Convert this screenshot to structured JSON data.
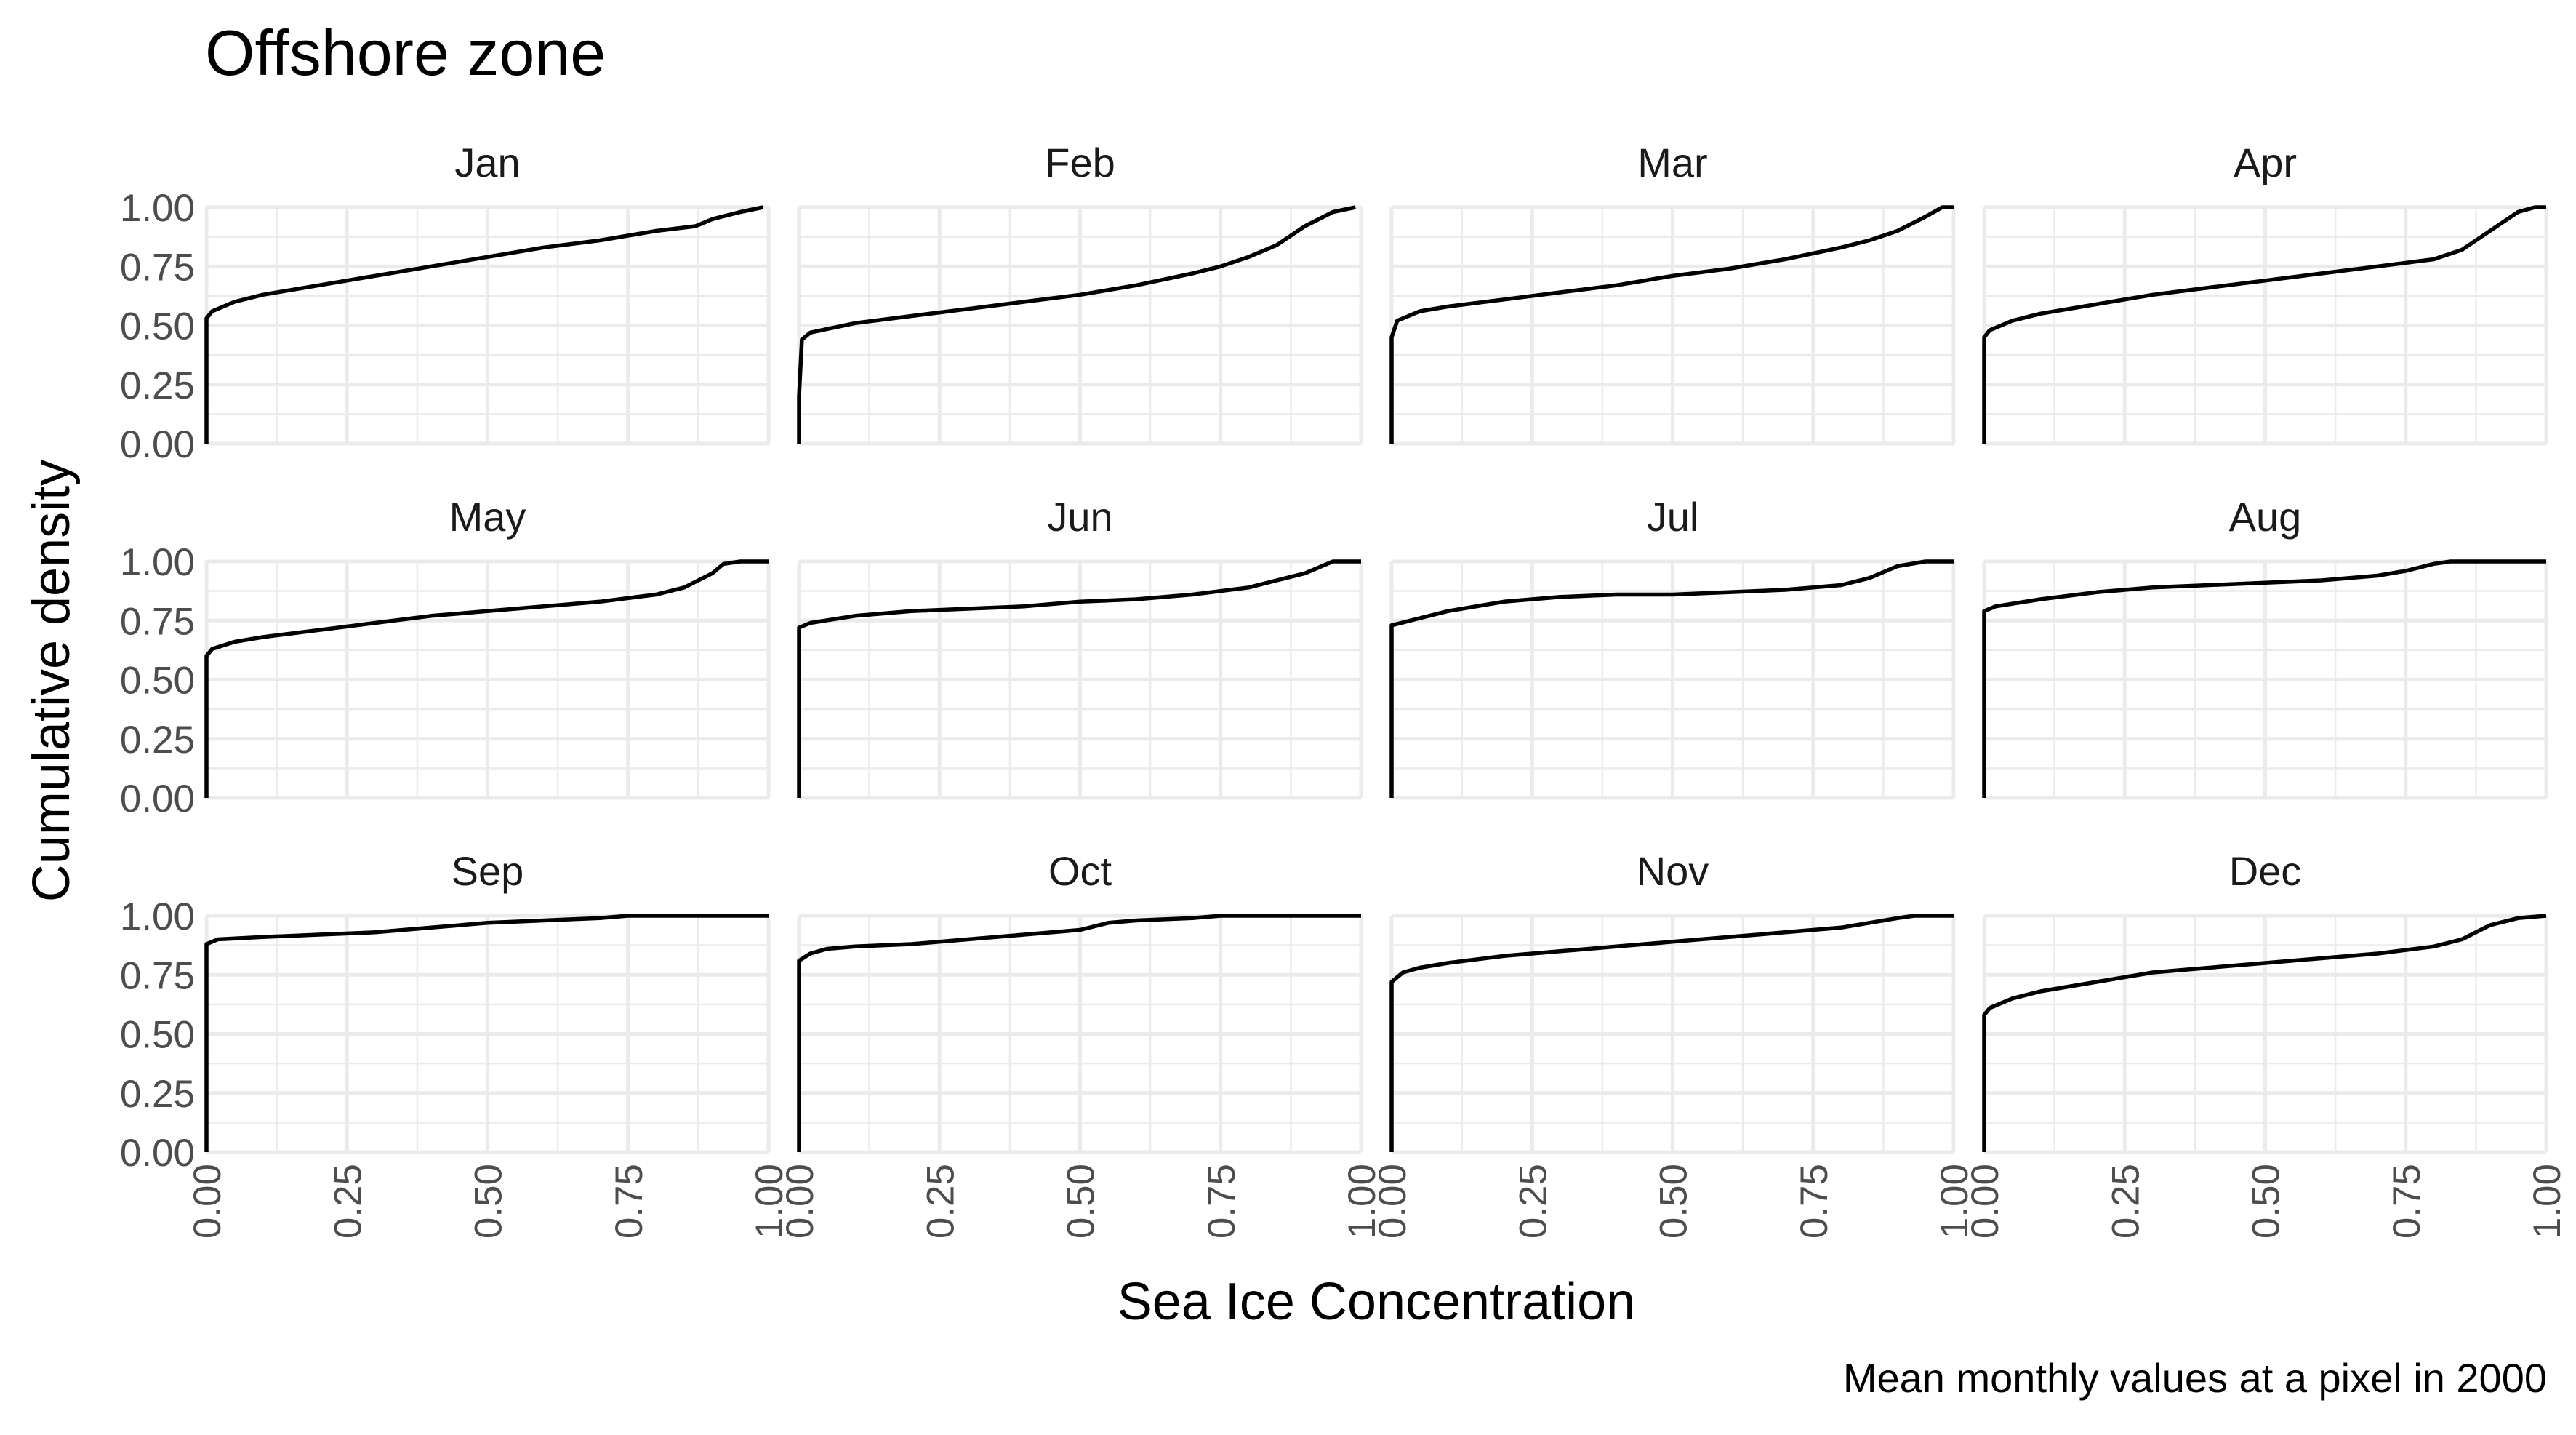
{
  "chart_data": {
    "type": "line",
    "title": "Offshore zone",
    "xlabel": "Sea Ice Concentration",
    "ylabel": "Cumulative density",
    "caption": "Mean monthly values at a pixel in 2000",
    "xlim": [
      0,
      1
    ],
    "ylim": [
      0,
      1
    ],
    "x_ticks": [
      "0.00",
      "0.25",
      "0.50",
      "0.75",
      "1.00"
    ],
    "y_ticks": [
      "0.00",
      "0.25",
      "0.50",
      "0.75",
      "1.00"
    ],
    "grid": true,
    "facets": [
      {
        "name": "Jan",
        "series": [
          {
            "x": [
              0,
              0,
              0.01,
              0.05,
              0.1,
              0.2,
              0.3,
              0.4,
              0.5,
              0.6,
              0.7,
              0.8,
              0.87,
              0.9,
              0.95,
              0.99
            ],
            "y": [
              0,
              0.53,
              0.56,
              0.6,
              0.63,
              0.67,
              0.71,
              0.75,
              0.79,
              0.83,
              0.86,
              0.9,
              0.92,
              0.95,
              0.98,
              1.0
            ]
          }
        ]
      },
      {
        "name": "Feb",
        "series": [
          {
            "x": [
              0,
              0,
              0.005,
              0.02,
              0.1,
              0.2,
              0.3,
              0.4,
              0.5,
              0.6,
              0.7,
              0.75,
              0.8,
              0.85,
              0.9,
              0.95,
              0.99
            ],
            "y": [
              0,
              0.2,
              0.44,
              0.47,
              0.51,
              0.54,
              0.57,
              0.6,
              0.63,
              0.67,
              0.72,
              0.75,
              0.79,
              0.84,
              0.92,
              0.98,
              1.0
            ]
          }
        ]
      },
      {
        "name": "Mar",
        "series": [
          {
            "x": [
              0,
              0,
              0.01,
              0.05,
              0.1,
              0.2,
              0.3,
              0.4,
              0.5,
              0.6,
              0.7,
              0.8,
              0.85,
              0.9,
              0.95,
              0.98,
              1.0
            ],
            "y": [
              0,
              0.45,
              0.52,
              0.56,
              0.58,
              0.61,
              0.64,
              0.67,
              0.71,
              0.74,
              0.78,
              0.83,
              0.86,
              0.9,
              0.96,
              1.0,
              1.0
            ]
          }
        ]
      },
      {
        "name": "Apr",
        "series": [
          {
            "x": [
              0,
              0,
              0.01,
              0.05,
              0.1,
              0.2,
              0.3,
              0.4,
              0.5,
              0.6,
              0.7,
              0.8,
              0.85,
              0.9,
              0.95,
              0.98,
              1.0
            ],
            "y": [
              0,
              0.45,
              0.48,
              0.52,
              0.55,
              0.59,
              0.63,
              0.66,
              0.69,
              0.72,
              0.75,
              0.78,
              0.82,
              0.9,
              0.98,
              1.0,
              1.0
            ]
          }
        ]
      },
      {
        "name": "May",
        "series": [
          {
            "x": [
              0,
              0,
              0.01,
              0.05,
              0.1,
              0.2,
              0.3,
              0.4,
              0.5,
              0.6,
              0.7,
              0.8,
              0.85,
              0.9,
              0.92,
              0.95,
              1.0
            ],
            "y": [
              0,
              0.6,
              0.63,
              0.66,
              0.68,
              0.71,
              0.74,
              0.77,
              0.79,
              0.81,
              0.83,
              0.86,
              0.89,
              0.95,
              0.99,
              1.0,
              1.0
            ]
          }
        ]
      },
      {
        "name": "Jun",
        "series": [
          {
            "x": [
              0,
              0,
              0.02,
              0.1,
              0.2,
              0.3,
              0.4,
              0.5,
              0.6,
              0.7,
              0.8,
              0.85,
              0.9,
              0.95,
              1.0
            ],
            "y": [
              0,
              0.72,
              0.74,
              0.77,
              0.79,
              0.8,
              0.81,
              0.83,
              0.84,
              0.86,
              0.89,
              0.92,
              0.95,
              1.0,
              1.0
            ]
          }
        ]
      },
      {
        "name": "Jul",
        "series": [
          {
            "x": [
              0,
              0,
              0.05,
              0.1,
              0.2,
              0.3,
              0.4,
              0.5,
              0.6,
              0.7,
              0.8,
              0.85,
              0.9,
              0.95,
              1.0
            ],
            "y": [
              0,
              0.73,
              0.76,
              0.79,
              0.83,
              0.85,
              0.86,
              0.86,
              0.87,
              0.88,
              0.9,
              0.93,
              0.98,
              1.0,
              1.0
            ]
          }
        ]
      },
      {
        "name": "Aug",
        "series": [
          {
            "x": [
              0,
              0,
              0.02,
              0.1,
              0.2,
              0.3,
              0.4,
              0.5,
              0.6,
              0.7,
              0.75,
              0.8,
              0.83,
              1.0
            ],
            "y": [
              0,
              0.79,
              0.81,
              0.84,
              0.87,
              0.89,
              0.9,
              0.91,
              0.92,
              0.94,
              0.96,
              0.99,
              1.0,
              1.0
            ]
          }
        ]
      },
      {
        "name": "Sep",
        "series": [
          {
            "x": [
              0,
              0,
              0.02,
              0.1,
              0.2,
              0.3,
              0.4,
              0.5,
              0.6,
              0.7,
              0.75,
              1.0
            ],
            "y": [
              0,
              0.88,
              0.9,
              0.91,
              0.92,
              0.93,
              0.95,
              0.97,
              0.98,
              0.99,
              1.0,
              1.0
            ]
          }
        ]
      },
      {
        "name": "Oct",
        "series": [
          {
            "x": [
              0,
              0,
              0.02,
              0.05,
              0.1,
              0.2,
              0.3,
              0.4,
              0.5,
              0.55,
              0.6,
              0.7,
              0.75,
              1.0
            ],
            "y": [
              0,
              0.81,
              0.84,
              0.86,
              0.87,
              0.88,
              0.9,
              0.92,
              0.94,
              0.97,
              0.98,
              0.99,
              1.0,
              1.0
            ]
          }
        ]
      },
      {
        "name": "Nov",
        "series": [
          {
            "x": [
              0,
              0,
              0.02,
              0.05,
              0.1,
              0.2,
              0.3,
              0.4,
              0.5,
              0.6,
              0.7,
              0.8,
              0.85,
              0.9,
              0.93,
              1.0
            ],
            "y": [
              0,
              0.72,
              0.76,
              0.78,
              0.8,
              0.83,
              0.85,
              0.87,
              0.89,
              0.91,
              0.93,
              0.95,
              0.97,
              0.99,
              1.0,
              1.0
            ]
          }
        ]
      },
      {
        "name": "Dec",
        "series": [
          {
            "x": [
              0,
              0,
              0.01,
              0.05,
              0.1,
              0.2,
              0.3,
              0.4,
              0.5,
              0.6,
              0.7,
              0.8,
              0.85,
              0.9,
              0.95,
              1.0
            ],
            "y": [
              0,
              0.58,
              0.61,
              0.65,
              0.68,
              0.72,
              0.76,
              0.78,
              0.8,
              0.82,
              0.84,
              0.87,
              0.9,
              0.96,
              0.99,
              1.0
            ]
          }
        ]
      }
    ]
  }
}
